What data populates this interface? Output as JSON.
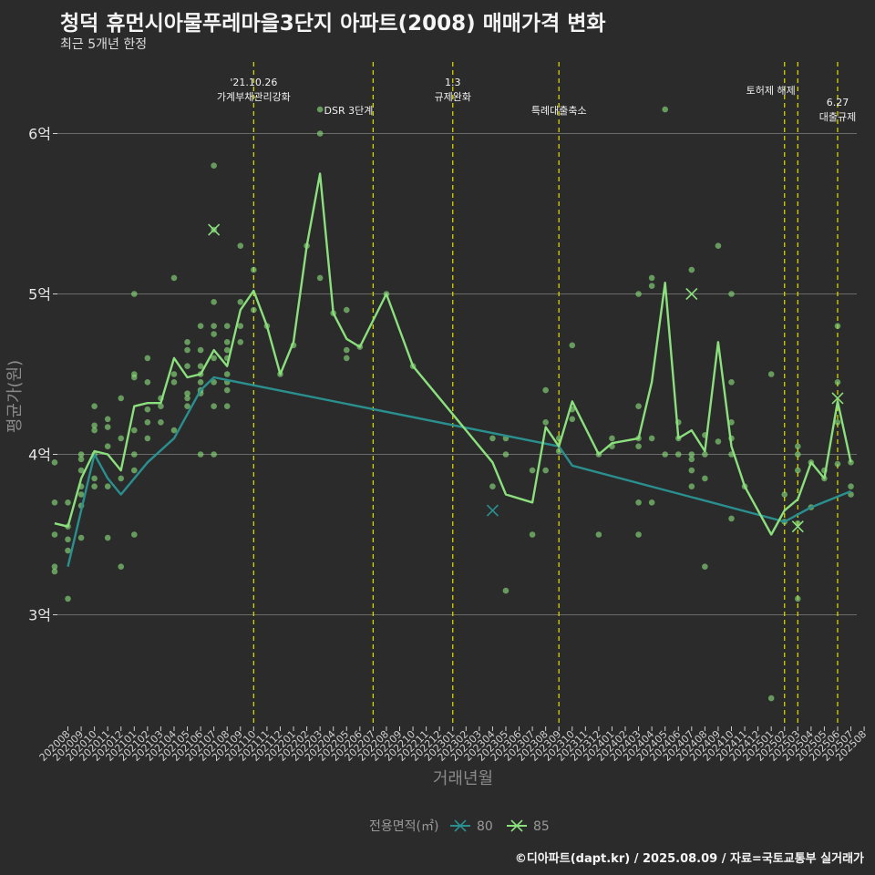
{
  "header": {
    "title": "청덕 휴먼시아물푸레마을3단지 아파트(2008) 매매가격 변화",
    "subtitle": "최근 5개년 한정",
    "caption": "©디아파트(dapt.kr) / 2025.08.09 / 자료=국토교통부 실거래가"
  },
  "chart_data": {
    "type": "line",
    "xlabel": "거래년월",
    "ylabel": "평균가(원)",
    "ylim": [
      2.3,
      6.35
    ],
    "y_ticks": [
      {
        "v": 3,
        "label": "3억"
      },
      {
        "v": 4,
        "label": "4억"
      },
      {
        "v": 5,
        "label": "5억"
      },
      {
        "v": 6,
        "label": "6억"
      }
    ],
    "categories": [
      "202008",
      "202009",
      "202010",
      "202011",
      "202012",
      "202101",
      "202102",
      "202103",
      "202104",
      "202105",
      "202106",
      "202107",
      "202108",
      "202109",
      "202110",
      "202111",
      "202112",
      "202201",
      "202202",
      "202203",
      "202204",
      "202205",
      "202206",
      "202207",
      "202208",
      "202209",
      "202210",
      "202211",
      "202212",
      "202301",
      "202302",
      "202303",
      "202304",
      "202305",
      "202306",
      "202307",
      "202308",
      "202309",
      "202310",
      "202311",
      "202312",
      "202401",
      "202402",
      "202403",
      "202404",
      "202405",
      "202406",
      "202407",
      "202408",
      "202409",
      "202410",
      "202411",
      "202412",
      "202501",
      "202502",
      "202503",
      "202504",
      "202505",
      "202506",
      "202507",
      "202508"
    ],
    "grid": true,
    "legend": {
      "title": "전용면적(㎡)",
      "position": "bottom"
    },
    "series": [
      {
        "name": "80",
        "color": "#2a8f8f",
        "points": [
          [
            "202008",
            3.3
          ],
          [
            "202010",
            4.0
          ],
          [
            "202011",
            3.85
          ],
          [
            "202012",
            3.75
          ],
          [
            "202102",
            3.95
          ],
          [
            "202104",
            4.1
          ],
          [
            "202106",
            4.4
          ],
          [
            "202107",
            4.48
          ],
          [
            "202309",
            4.05
          ],
          [
            "202310",
            3.93
          ],
          [
            "202502",
            3.58
          ],
          [
            "202504",
            3.67
          ],
          [
            "202507",
            3.77
          ]
        ]
      },
      {
        "name": "85",
        "color": "#8be07d",
        "points": [
          [
            "202007",
            3.57
          ],
          [
            "202008",
            3.55
          ],
          [
            "202009",
            3.85
          ],
          [
            "202010",
            4.02
          ],
          [
            "202011",
            4.0
          ],
          [
            "202012",
            3.9
          ],
          [
            "202101",
            4.3
          ],
          [
            "202102",
            4.32
          ],
          [
            "202103",
            4.32
          ],
          [
            "202104",
            4.6
          ],
          [
            "202105",
            4.48
          ],
          [
            "202106",
            4.5
          ],
          [
            "202107",
            4.65
          ],
          [
            "202108",
            4.55
          ],
          [
            "202109",
            4.9
          ],
          [
            "202110",
            5.02
          ],
          [
            "202111",
            4.8
          ],
          [
            "202112",
            4.5
          ],
          [
            "202201",
            4.7
          ],
          [
            "202202",
            5.3
          ],
          [
            "202203",
            5.75
          ],
          [
            "202204",
            4.88
          ],
          [
            "202205",
            4.72
          ],
          [
            "202206",
            4.67
          ],
          [
            "202208",
            5.0
          ],
          [
            "202210",
            4.55
          ],
          [
            "202304",
            3.95
          ],
          [
            "202305",
            3.75
          ],
          [
            "202307",
            3.7
          ],
          [
            "202308",
            4.17
          ],
          [
            "202309",
            4.05
          ],
          [
            "202310",
            4.33
          ],
          [
            "202312",
            4.0
          ],
          [
            "202401",
            4.07
          ],
          [
            "202403",
            4.1
          ],
          [
            "202404",
            4.45
          ],
          [
            "202405",
            5.07
          ],
          [
            "202406",
            4.1
          ],
          [
            "202407",
            4.15
          ],
          [
            "202408",
            4.02
          ],
          [
            "202409",
            4.7
          ],
          [
            "202410",
            4.05
          ],
          [
            "202411",
            3.8
          ],
          [
            "202501",
            3.5
          ],
          [
            "202502",
            3.65
          ],
          [
            "202503",
            3.72
          ],
          [
            "202504",
            3.95
          ],
          [
            "202505",
            3.85
          ],
          [
            "202506",
            4.33
          ],
          [
            "202507",
            3.95
          ]
        ]
      }
    ],
    "scatter_points": [
      [
        "202007",
        3.7
      ],
      [
        "202007",
        3.5
      ],
      [
        "202007",
        3.3
      ],
      [
        "202007",
        3.27
      ],
      [
        "202007",
        3.95
      ],
      [
        "202008",
        3.1
      ],
      [
        "202008",
        3.4
      ],
      [
        "202008",
        3.55
      ],
      [
        "202008",
        3.7
      ],
      [
        "202008",
        3.47
      ],
      [
        "202009",
        3.9
      ],
      [
        "202009",
        4.0
      ],
      [
        "202009",
        3.97
      ],
      [
        "202009",
        3.8
      ],
      [
        "202009",
        3.75
      ],
      [
        "202009",
        3.68
      ],
      [
        "202009",
        3.48
      ],
      [
        "202010",
        4.15
      ],
      [
        "202010",
        4.18
      ],
      [
        "202010",
        4.3
      ],
      [
        "202010",
        3.85
      ],
      [
        "202010",
        3.8
      ],
      [
        "202010",
        4.0
      ],
      [
        "202011",
        4.22
      ],
      [
        "202011",
        4.17
      ],
      [
        "202011",
        4.05
      ],
      [
        "202011",
        3.8
      ],
      [
        "202011",
        3.48
      ],
      [
        "202012",
        3.3
      ],
      [
        "202012",
        3.85
      ],
      [
        "202012",
        4.35
      ],
      [
        "202012",
        4.1
      ],
      [
        "202101",
        5.0
      ],
      [
        "202101",
        4.5
      ],
      [
        "202101",
        4.48
      ],
      [
        "202101",
        4.15
      ],
      [
        "202101",
        4.0
      ],
      [
        "202101",
        3.9
      ],
      [
        "202101",
        3.5
      ],
      [
        "202102",
        4.6
      ],
      [
        "202102",
        4.45
      ],
      [
        "202102",
        4.28
      ],
      [
        "202102",
        4.2
      ],
      [
        "202102",
        4.1
      ],
      [
        "202103",
        4.35
      ],
      [
        "202103",
        4.3
      ],
      [
        "202103",
        4.2
      ],
      [
        "202104",
        5.1
      ],
      [
        "202104",
        4.5
      ],
      [
        "202104",
        4.45
      ],
      [
        "202104",
        4.15
      ],
      [
        "202105",
        4.7
      ],
      [
        "202105",
        4.65
      ],
      [
        "202105",
        4.55
      ],
      [
        "202105",
        4.38
      ],
      [
        "202105",
        4.35
      ],
      [
        "202105",
        4.3
      ],
      [
        "202106",
        4.8
      ],
      [
        "202106",
        4.65
      ],
      [
        "202106",
        4.55
      ],
      [
        "202106",
        4.5
      ],
      [
        "202106",
        4.45
      ],
      [
        "202106",
        4.4
      ],
      [
        "202106",
        4.38
      ],
      [
        "202106",
        4.0
      ],
      [
        "202107",
        5.8
      ],
      [
        "202107",
        5.4
      ],
      [
        "202107",
        4.95
      ],
      [
        "202107",
        4.8
      ],
      [
        "202107",
        4.75
      ],
      [
        "202107",
        4.6
      ],
      [
        "202107",
        4.45
      ],
      [
        "202107",
        4.3
      ],
      [
        "202107",
        4.0
      ],
      [
        "202108",
        4.8
      ],
      [
        "202108",
        4.7
      ],
      [
        "202108",
        4.65
      ],
      [
        "202108",
        4.6
      ],
      [
        "202108",
        4.5
      ],
      [
        "202108",
        4.45
      ],
      [
        "202108",
        4.4
      ],
      [
        "202108",
        4.3
      ],
      [
        "202109",
        5.3
      ],
      [
        "202109",
        4.95
      ],
      [
        "202109",
        4.8
      ],
      [
        "202109",
        4.7
      ],
      [
        "202110",
        5.15
      ],
      [
        "202110",
        4.9
      ],
      [
        "202111",
        4.8
      ],
      [
        "202112",
        4.5
      ],
      [
        "202201",
        4.68
      ],
      [
        "202202",
        5.3
      ],
      [
        "202203",
        6.15
      ],
      [
        "202203",
        6.0
      ],
      [
        "202203",
        5.1
      ],
      [
        "202204",
        4.88
      ],
      [
        "202205",
        4.9
      ],
      [
        "202205",
        4.65
      ],
      [
        "202205",
        4.6
      ],
      [
        "202206",
        4.67
      ],
      [
        "202208",
        5.0
      ],
      [
        "202210",
        4.55
      ],
      [
        "202304",
        4.1
      ],
      [
        "202304",
        3.8
      ],
      [
        "202305",
        4.1
      ],
      [
        "202305",
        4.0
      ],
      [
        "202305",
        3.15
      ],
      [
        "202307",
        3.9
      ],
      [
        "202307",
        3.5
      ],
      [
        "202308",
        4.4
      ],
      [
        "202308",
        4.2
      ],
      [
        "202308",
        3.9
      ],
      [
        "202309",
        4.1
      ],
      [
        "202309",
        4.02
      ],
      [
        "202310",
        4.68
      ],
      [
        "202310",
        4.28
      ],
      [
        "202310",
        4.22
      ],
      [
        "202312",
        4.0
      ],
      [
        "202312",
        3.5
      ],
      [
        "202401",
        4.1
      ],
      [
        "202401",
        4.05
      ],
      [
        "202403",
        5.0
      ],
      [
        "202403",
        4.3
      ],
      [
        "202403",
        4.1
      ],
      [
        "202403",
        4.05
      ],
      [
        "202403",
        3.7
      ],
      [
        "202403",
        3.5
      ],
      [
        "202404",
        5.1
      ],
      [
        "202404",
        5.05
      ],
      [
        "202404",
        4.1
      ],
      [
        "202404",
        3.7
      ],
      [
        "202405",
        6.15
      ],
      [
        "202405",
        4.0
      ],
      [
        "202406",
        4.2
      ],
      [
        "202406",
        4.1
      ],
      [
        "202406",
        4.0
      ],
      [
        "202407",
        5.15
      ],
      [
        "202407",
        4.0
      ],
      [
        "202407",
        3.97
      ],
      [
        "202407",
        3.9
      ],
      [
        "202407",
        3.8
      ],
      [
        "202408",
        4.12
      ],
      [
        "202408",
        4.0
      ],
      [
        "202408",
        3.85
      ],
      [
        "202408",
        3.3
      ],
      [
        "202409",
        5.3
      ],
      [
        "202409",
        4.08
      ],
      [
        "202410",
        5.0
      ],
      [
        "202410",
        4.45
      ],
      [
        "202410",
        4.2
      ],
      [
        "202410",
        4.1
      ],
      [
        "202410",
        4.0
      ],
      [
        "202410",
        3.6
      ],
      [
        "202411",
        3.8
      ],
      [
        "202501",
        4.5
      ],
      [
        "202501",
        2.48
      ],
      [
        "202502",
        3.75
      ],
      [
        "202502",
        3.58
      ],
      [
        "202503",
        4.05
      ],
      [
        "202503",
        4.0
      ],
      [
        "202503",
        3.9
      ],
      [
        "202503",
        3.57
      ],
      [
        "202503",
        3.1
      ],
      [
        "202504",
        3.95
      ],
      [
        "202504",
        3.67
      ],
      [
        "202505",
        3.9
      ],
      [
        "202505",
        3.85
      ],
      [
        "202506",
        4.8
      ],
      [
        "202506",
        4.45
      ],
      [
        "202506",
        4.2
      ],
      [
        "202506",
        3.94
      ],
      [
        "202507",
        3.95
      ],
      [
        "202507",
        3.8
      ],
      [
        "202507",
        3.75
      ]
    ],
    "cross_markers": [
      {
        "series": "85",
        "x": "202107",
        "y": 5.4
      },
      {
        "series": "80",
        "x": "202304",
        "y": 3.65
      },
      {
        "series": "85",
        "x": "202407",
        "y": 5.0
      },
      {
        "series": "85",
        "x": "202503",
        "y": 3.55
      },
      {
        "series": "85",
        "x": "202506",
        "y": 4.35
      }
    ],
    "events": [
      {
        "x": "202110",
        "lines": [
          "'21.10.26",
          "가계부채관리강화"
        ]
      },
      {
        "x": "202207",
        "lines": [
          "DSR 3단계"
        ]
      },
      {
        "x": "202301",
        "lines": [
          "1.3",
          "규제완화"
        ]
      },
      {
        "x": "202309",
        "lines": [
          "특례대출축소"
        ]
      },
      {
        "x": "202502",
        "lines": [
          "토허제 해제"
        ]
      },
      {
        "x": "202503",
        "lines": []
      },
      {
        "x": "202506",
        "lines": [
          "6.27",
          "대출규제"
        ]
      }
    ]
  }
}
